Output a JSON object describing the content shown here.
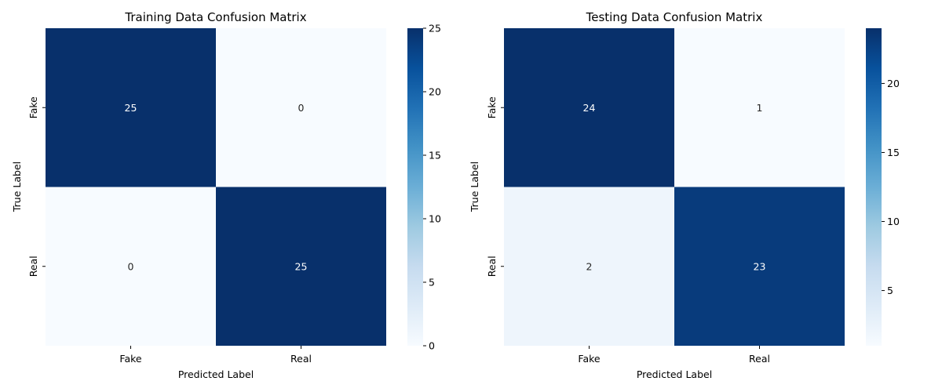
{
  "chart_data": [
    {
      "type": "heatmap",
      "title": "Training Data Confusion Matrix",
      "xlabel": "Predicted Label",
      "ylabel": "True Label",
      "x_categories": [
        "Fake",
        "Real"
      ],
      "y_categories": [
        "Fake",
        "Real"
      ],
      "values": [
        [
          25,
          0
        ],
        [
          0,
          25
        ]
      ],
      "colormap": "Blues",
      "colorbar": {
        "vmin": 0,
        "vmax": 25,
        "ticks": [
          0,
          5,
          10,
          15,
          20,
          25
        ]
      },
      "annotations": true
    },
    {
      "type": "heatmap",
      "title": "Testing Data Confusion Matrix",
      "xlabel": "Predicted Label",
      "ylabel": "True Label",
      "x_categories": [
        "Fake",
        "Real"
      ],
      "y_categories": [
        "Fake",
        "Real"
      ],
      "values": [
        [
          24,
          1
        ],
        [
          2,
          23
        ]
      ],
      "colormap": "Blues",
      "colorbar": {
        "vmin": 1,
        "vmax": 24,
        "ticks": [
          5,
          10,
          15,
          20
        ]
      },
      "annotations": true
    }
  ]
}
